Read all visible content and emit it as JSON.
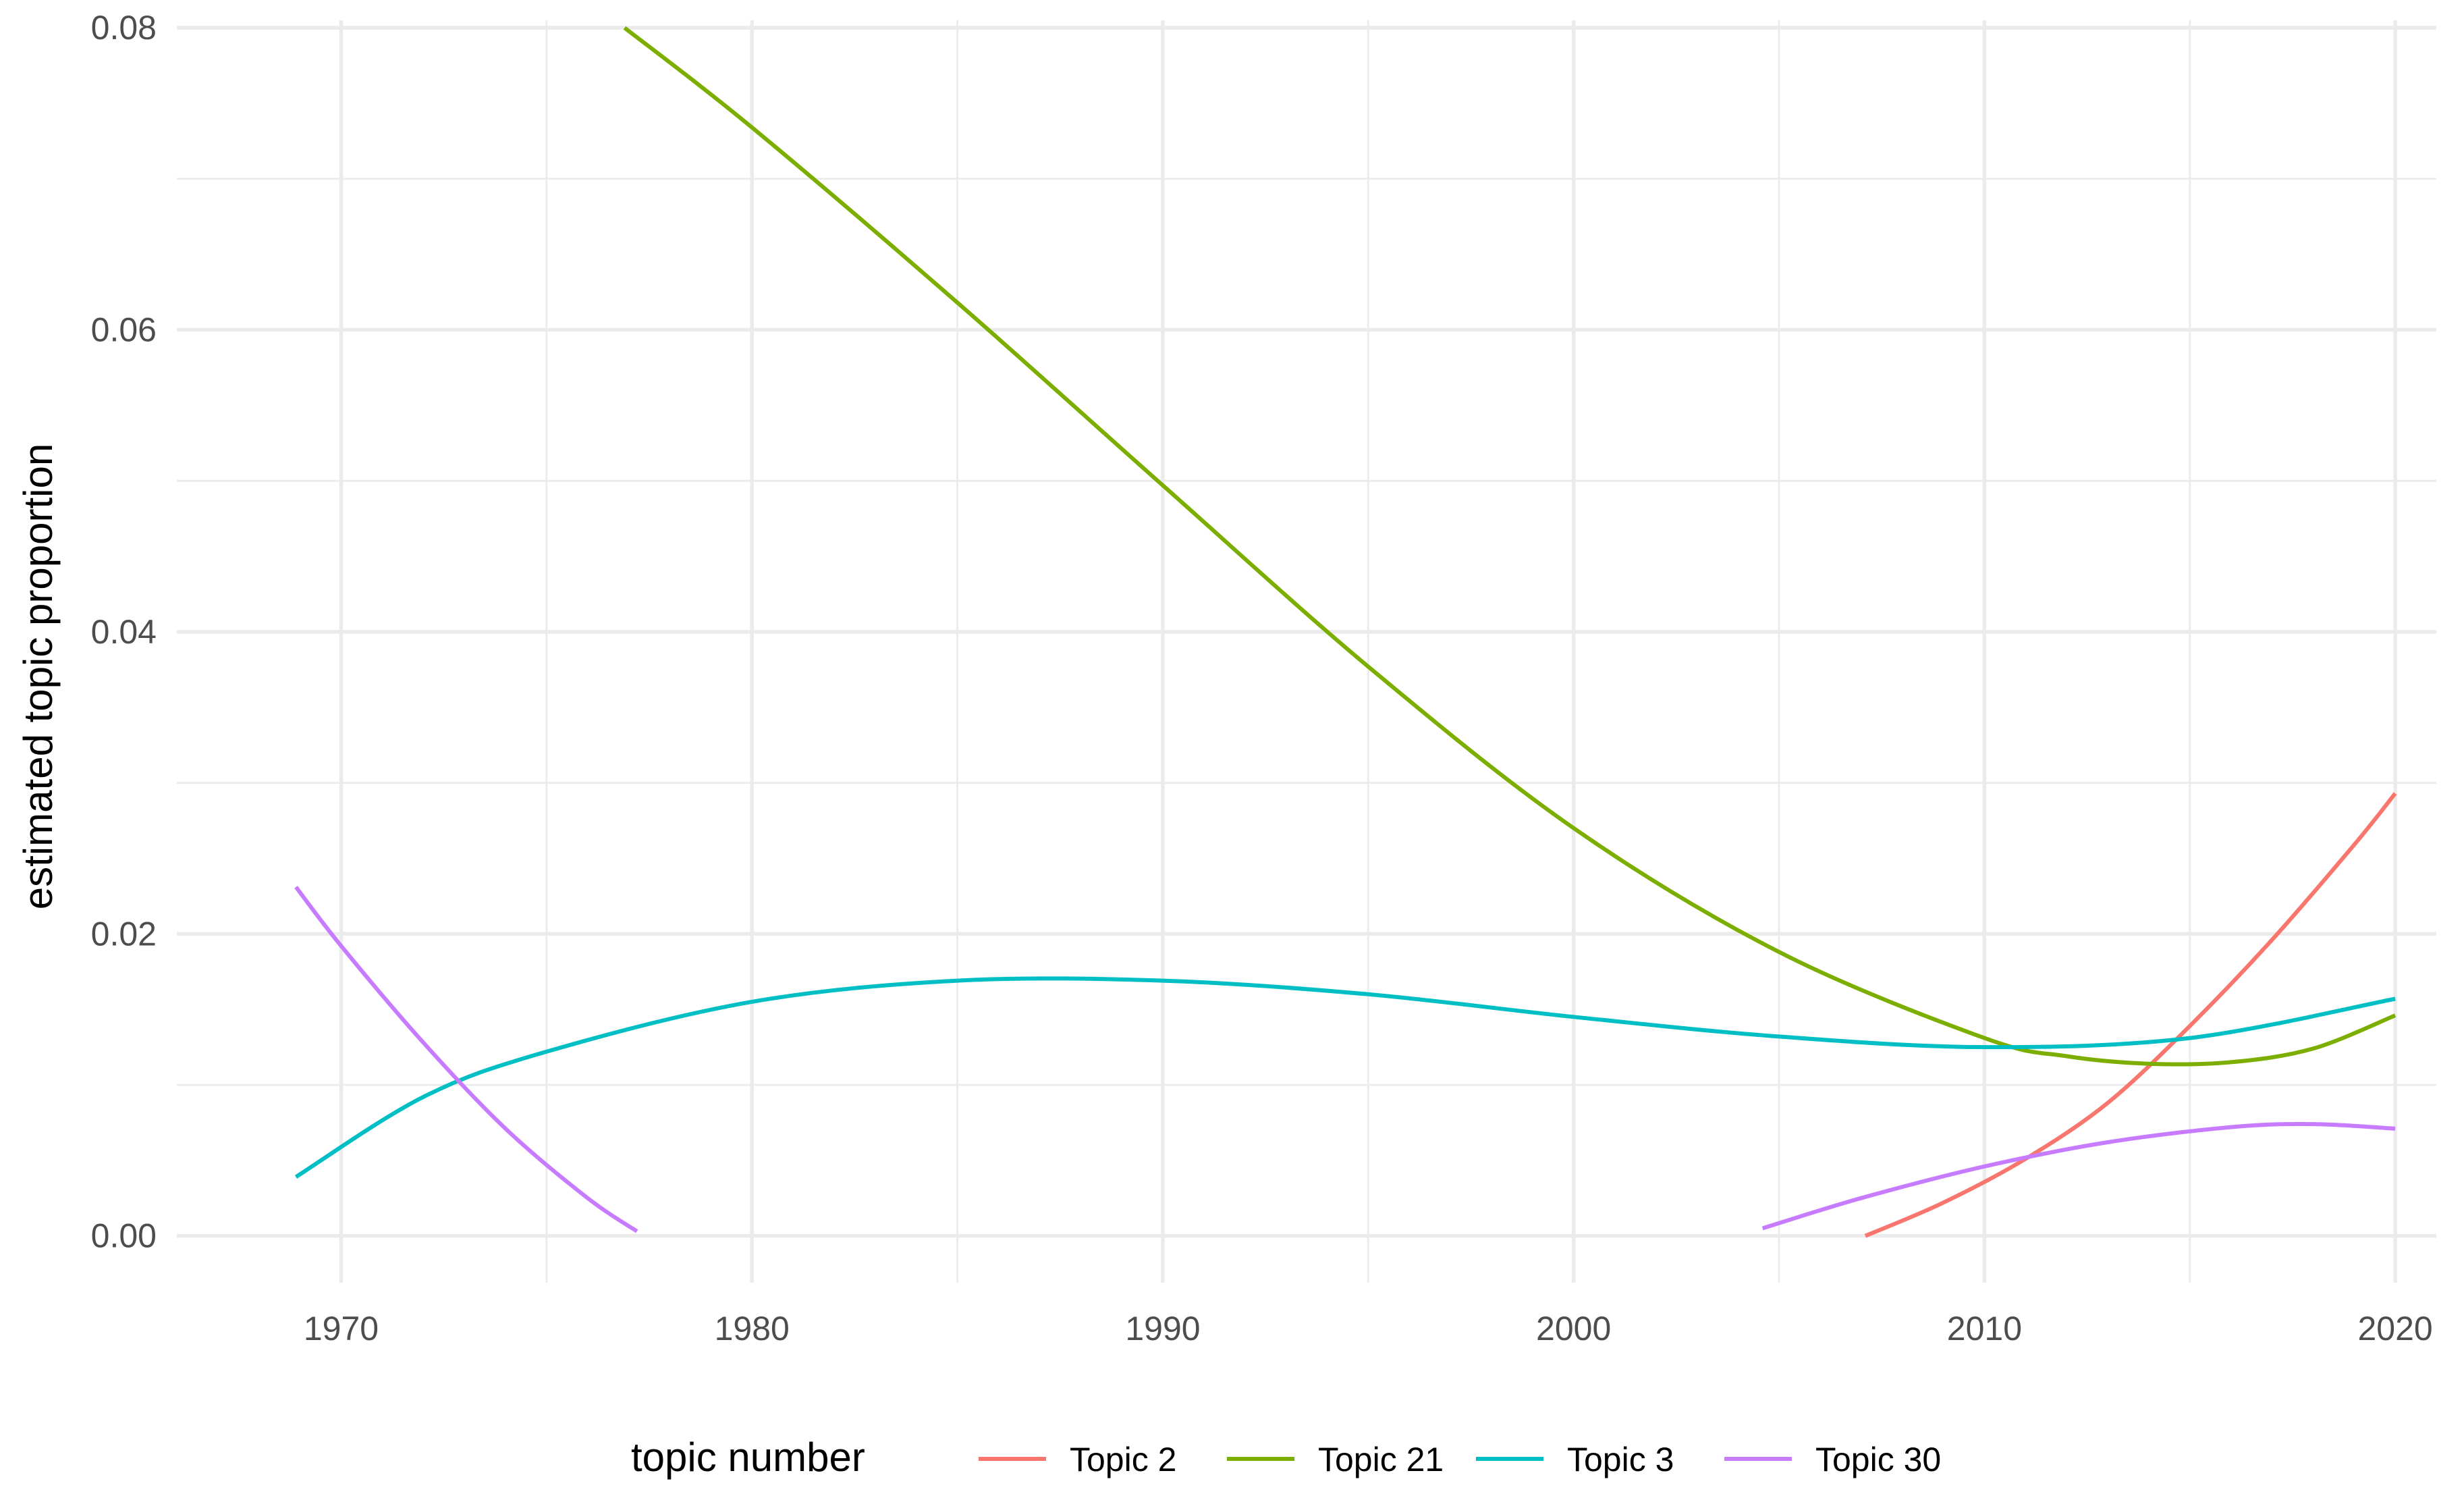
{
  "chart_data": {
    "type": "line",
    "title": "",
    "xlabel": "",
    "ylabel": "estimated topic proportion",
    "xlim": [
      1966,
      2021
    ],
    "ylim": [
      -0.0031,
      0.0805
    ],
    "x_ticks": [
      1970,
      1980,
      1990,
      2000,
      2010,
      2020
    ],
    "x_tick_labels": [
      "1970",
      "1980",
      "1990",
      "2000",
      "2010",
      "2020"
    ],
    "y_ticks": [
      0.0,
      0.02,
      0.04,
      0.06,
      0.08
    ],
    "y_tick_labels": [
      "0.00",
      "0.02",
      "0.04",
      "0.06",
      "0.08"
    ],
    "grid": true,
    "legend": {
      "title": "topic number",
      "position": "bottom"
    },
    "series": [
      {
        "name": "Topic 2",
        "color": "#F8766D",
        "x": [
          2007.1,
          2009,
          2011,
          2013,
          2015,
          2017,
          2019,
          2020
        ],
        "y": [
          0.0,
          0.0022,
          0.0051,
          0.0088,
          0.0139,
          0.0196,
          0.0259,
          0.0293
        ]
      },
      {
        "name": "Topic 21",
        "color": "#7CAE00",
        "x": [
          1976.9,
          1980,
          1985,
          1990,
          1995,
          2000,
          2005,
          2010,
          2012,
          2014,
          2016,
          2018,
          2020
        ],
        "y": [
          0.08,
          0.0734,
          0.0618,
          0.0497,
          0.0377,
          0.027,
          0.0188,
          0.0131,
          0.0119,
          0.0114,
          0.0115,
          0.0124,
          0.0146
        ]
      },
      {
        "name": "Topic 3",
        "color": "#00BFC4",
        "x": [
          1968.9,
          1972,
          1975,
          1980,
          1985,
          1990,
          1995,
          2000,
          2005,
          2010,
          2015,
          2020
        ],
        "y": [
          0.0039,
          0.0092,
          0.0122,
          0.0155,
          0.0169,
          0.0169,
          0.016,
          0.0145,
          0.0132,
          0.0125,
          0.0131,
          0.0157
        ]
      },
      {
        "name": "Topic 30",
        "color": "#C77CFF",
        "x": [
          1968.9,
          1970,
          1972,
          1974,
          1976,
          1977.2
        ],
        "y": [
          0.0231,
          0.0192,
          0.0128,
          0.0071,
          0.0025,
          0.0003
        ]
      },
      {
        "name": "Topic 30",
        "color": "#C77CFF",
        "x": [
          2004.6,
          2007,
          2010,
          2013,
          2016,
          2018,
          2020
        ],
        "y": [
          0.0005,
          0.0025,
          0.0046,
          0.0062,
          0.0072,
          0.0074,
          0.0071
        ]
      }
    ],
    "legend_entries": [
      {
        "label": "Topic 2",
        "color": "#F8766D"
      },
      {
        "label": "Topic 21",
        "color": "#7CAE00"
      },
      {
        "label": "Topic 3",
        "color": "#00BFC4"
      },
      {
        "label": "Topic 30",
        "color": "#C77CFF"
      }
    ]
  }
}
